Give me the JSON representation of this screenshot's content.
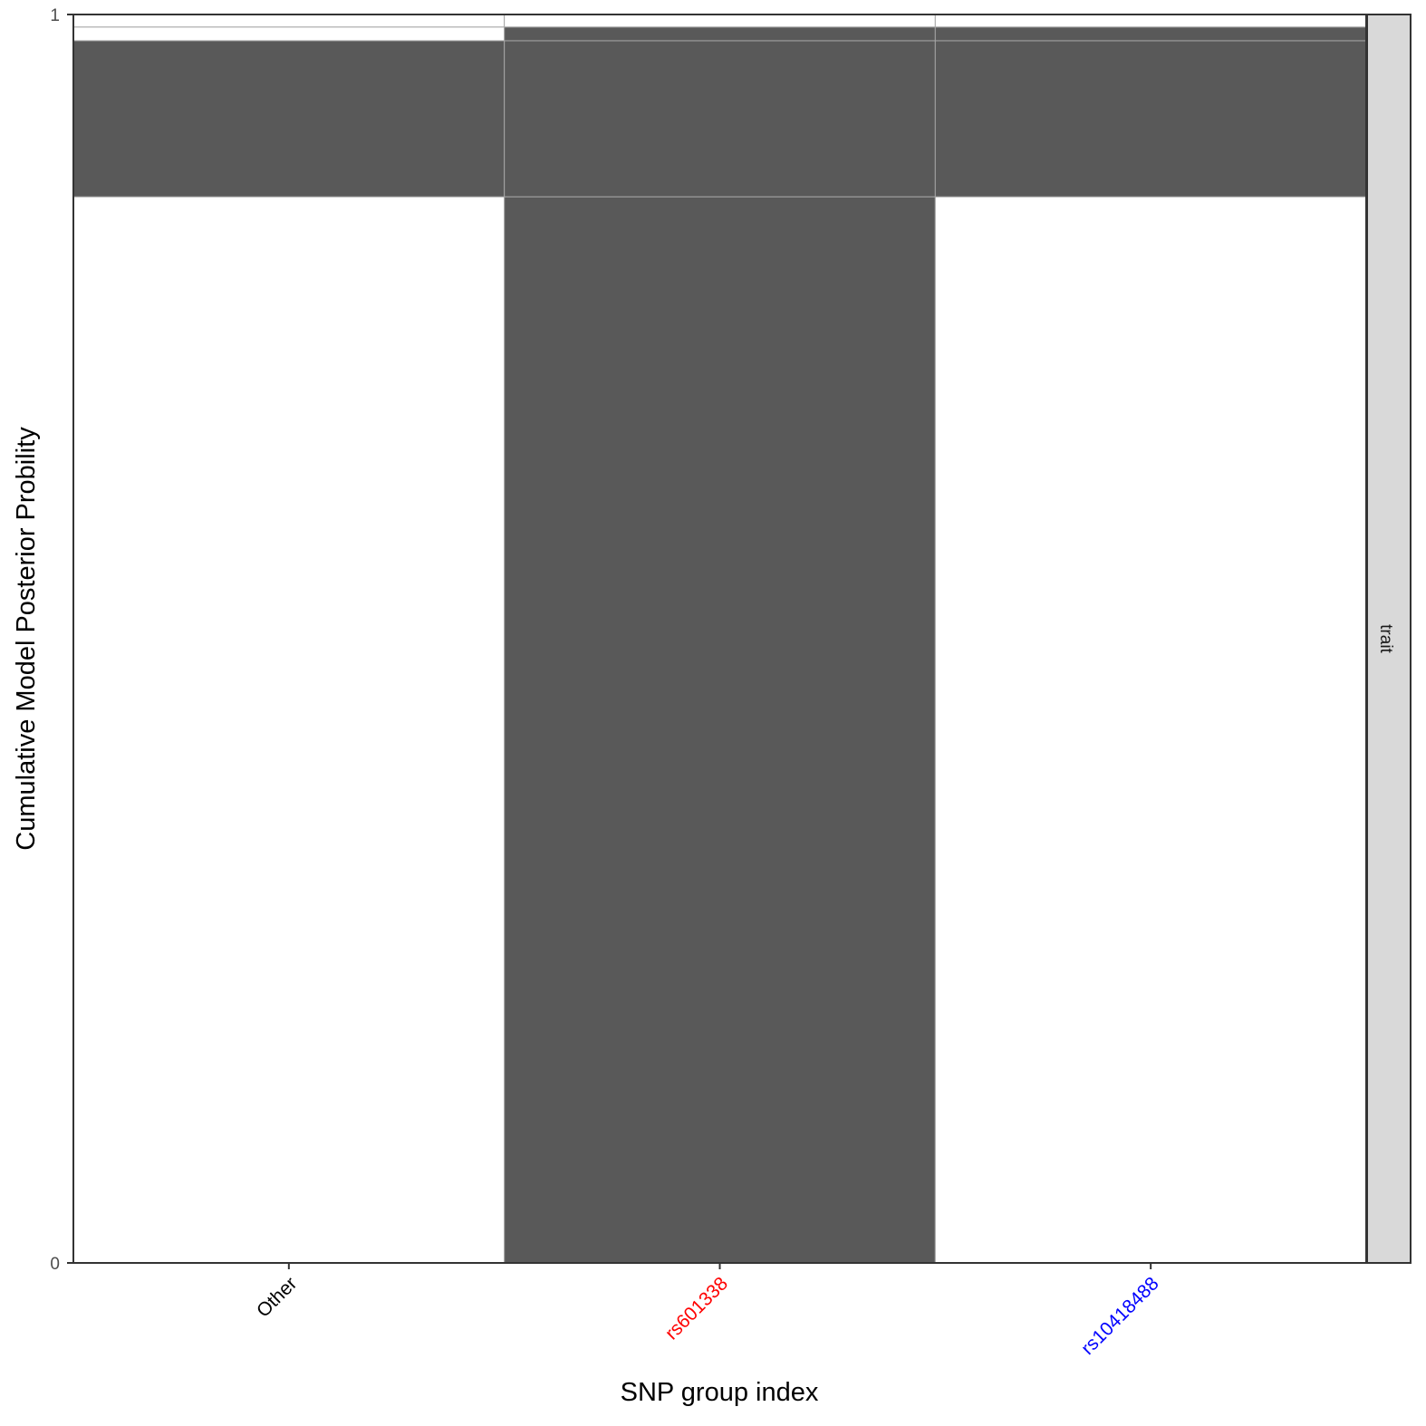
{
  "chart_data": {
    "type": "bar",
    "stacked": true,
    "categories": [
      "Other",
      "rs601338",
      "rs10418488"
    ],
    "category_colors": [
      "#000000",
      "#ff0000",
      "#0000ff"
    ],
    "xlabel": "SNP group index",
    "ylabel": "Cumulative Model Posterior Probility",
    "ylim": [
      0,
      1
    ],
    "yticks": [
      {
        "value": 0,
        "label": "0"
      },
      {
        "value": 1,
        "label": "1"
      }
    ],
    "facet_label": "trait",
    "grid": false,
    "colors": {
      "causal": "#595959",
      "non_causal": "#ffffff",
      "segment_border": "#a6a6a6",
      "panel_border": "#333333",
      "strip_fill": "#d9d9d9"
    },
    "models": [
      {
        "value": 0.854,
        "causal": [
          false,
          true,
          false
        ]
      },
      {
        "value": 0.125,
        "causal": [
          true,
          true,
          true
        ]
      },
      {
        "value": 0.011,
        "causal": [
          false,
          true,
          true
        ]
      },
      {
        "value": 0.01,
        "causal": [
          false,
          false,
          false
        ]
      }
    ]
  }
}
